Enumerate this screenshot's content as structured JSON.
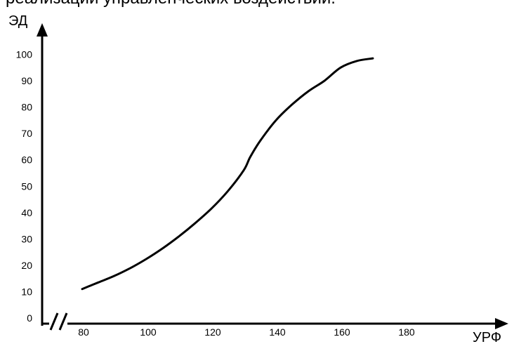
{
  "heading": "реализации управленческих воздействий.",
  "chart_data": {
    "type": "line",
    "xlabel": "УРФ",
    "ylabel": "ЭД",
    "xlim": [
      80,
      180
    ],
    "ylim": [
      0,
      100
    ],
    "x_ticks": [
      80,
      100,
      120,
      140,
      160,
      180
    ],
    "y_ticks": [
      0,
      10,
      20,
      30,
      40,
      50,
      60,
      70,
      80,
      90,
      100
    ],
    "axis_break": true,
    "grid": false,
    "series": [
      {
        "x": [
          80,
          85,
          90,
          95,
          100,
          105,
          110,
          115,
          120,
          125,
          130,
          132,
          135,
          140,
          145,
          150,
          155,
          160,
          165,
          170
        ],
        "y": [
          11,
          13.5,
          16,
          19,
          22.5,
          26.5,
          31,
          36,
          41.5,
          48,
          56,
          61,
          67,
          75,
          81,
          86,
          90,
          95,
          97.5,
          98.5
        ]
      }
    ]
  }
}
